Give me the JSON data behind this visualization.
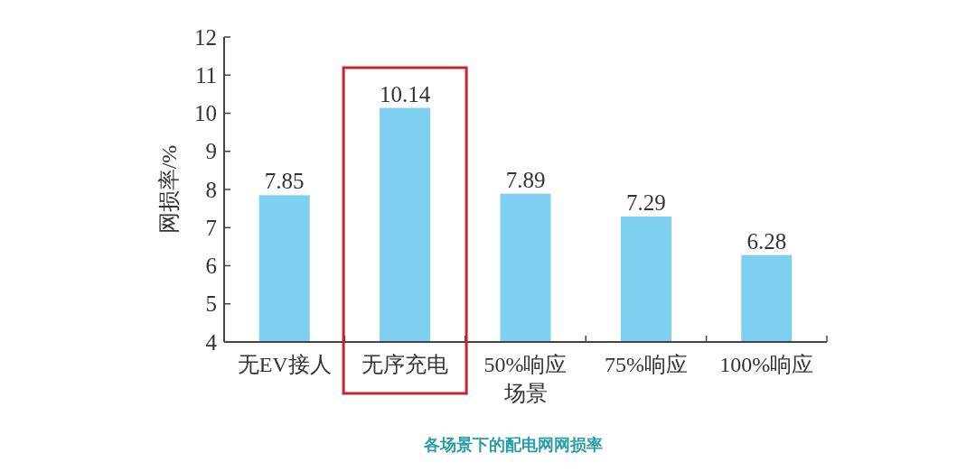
{
  "chart_data": {
    "type": "bar",
    "title": "各场景下的配电网网损率",
    "xlabel": "场景",
    "ylabel": "网损率/%",
    "categories": [
      "无EV接人",
      "无序充电",
      "50%响应",
      "75%响应",
      "100%响应"
    ],
    "values": [
      7.85,
      10.14,
      7.89,
      7.29,
      6.28
    ],
    "color": "#7fd0f0",
    "ylim": [
      4,
      12
    ],
    "yticks": [
      4,
      5,
      6,
      7,
      8,
      9,
      10,
      11,
      12
    ],
    "data_labels": true
  }
}
